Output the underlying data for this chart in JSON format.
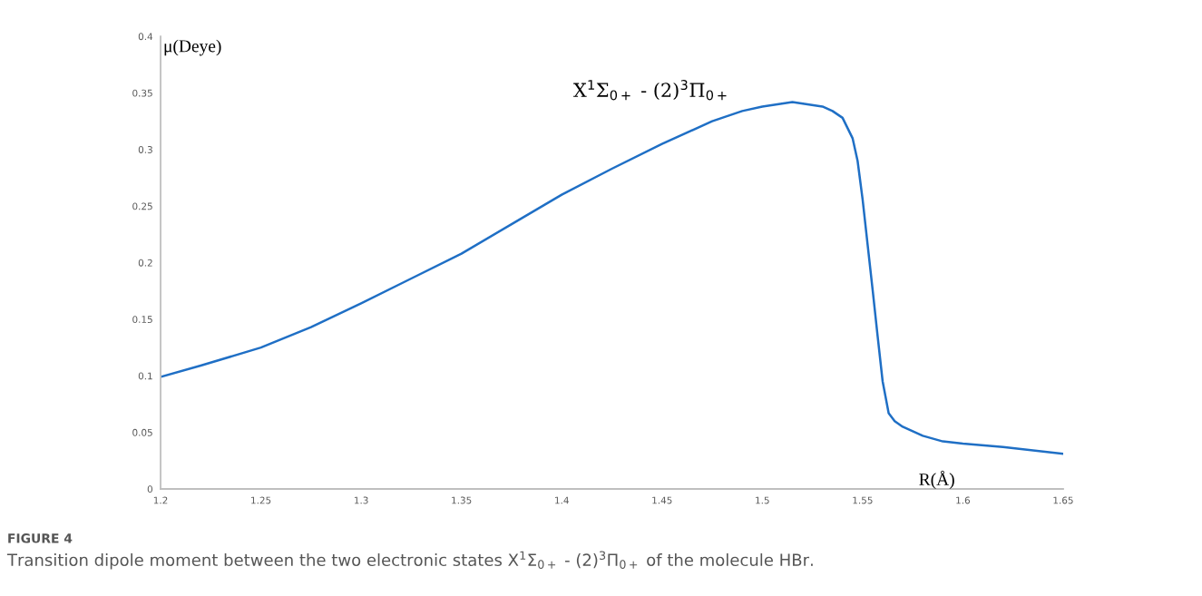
{
  "chart_data": {
    "type": "line",
    "xlabel": "R(Å)",
    "ylabel": "μ(Deye)",
    "x": [
      1.2,
      1.22,
      1.25,
      1.275,
      1.3,
      1.325,
      1.35,
      1.375,
      1.4,
      1.425,
      1.45,
      1.475,
      1.49,
      1.5,
      1.515,
      1.53,
      1.535,
      1.54,
      1.545,
      1.5475,
      1.55,
      1.5525,
      1.555,
      1.5575,
      1.56,
      1.563,
      1.566,
      1.57,
      1.575,
      1.58,
      1.59,
      1.6,
      1.62,
      1.65
    ],
    "series": [
      {
        "name": "X$^{1}$Σ$_{0+}$ - (2)$^{3}$Π$_{0+}$",
        "color": "#1f6fc5",
        "values": [
          0.099,
          0.109,
          0.125,
          0.143,
          0.164,
          0.186,
          0.208,
          0.234,
          0.26,
          0.283,
          0.305,
          0.325,
          0.334,
          0.338,
          0.342,
          0.338,
          0.334,
          0.328,
          0.31,
          0.29,
          0.256,
          0.216,
          0.176,
          0.135,
          0.095,
          0.067,
          0.06,
          0.055,
          0.051,
          0.047,
          0.042,
          0.04,
          0.037,
          0.031
        ]
      }
    ],
    "xlim": [
      1.2,
      1.65
    ],
    "xticks": [
      1.2,
      1.25,
      1.3,
      1.35,
      1.4,
      1.45,
      1.5,
      1.55,
      1.6,
      1.65
    ],
    "ylim": [
      0,
      0.4
    ],
    "yticks": [
      0,
      0.05,
      0.1,
      0.15,
      0.2,
      0.25,
      0.3,
      0.35,
      0.4
    ],
    "grid": false,
    "legend": false,
    "marker": "none",
    "line_style": "solid",
    "annotations": [
      "FIGURE 4",
      "Transition dipole moment between the two electronic states X$^{1}$Σ$_{0+}$ - (2)$^{3}$Π$_{0+}$ of the molecule HBr."
    ]
  }
}
